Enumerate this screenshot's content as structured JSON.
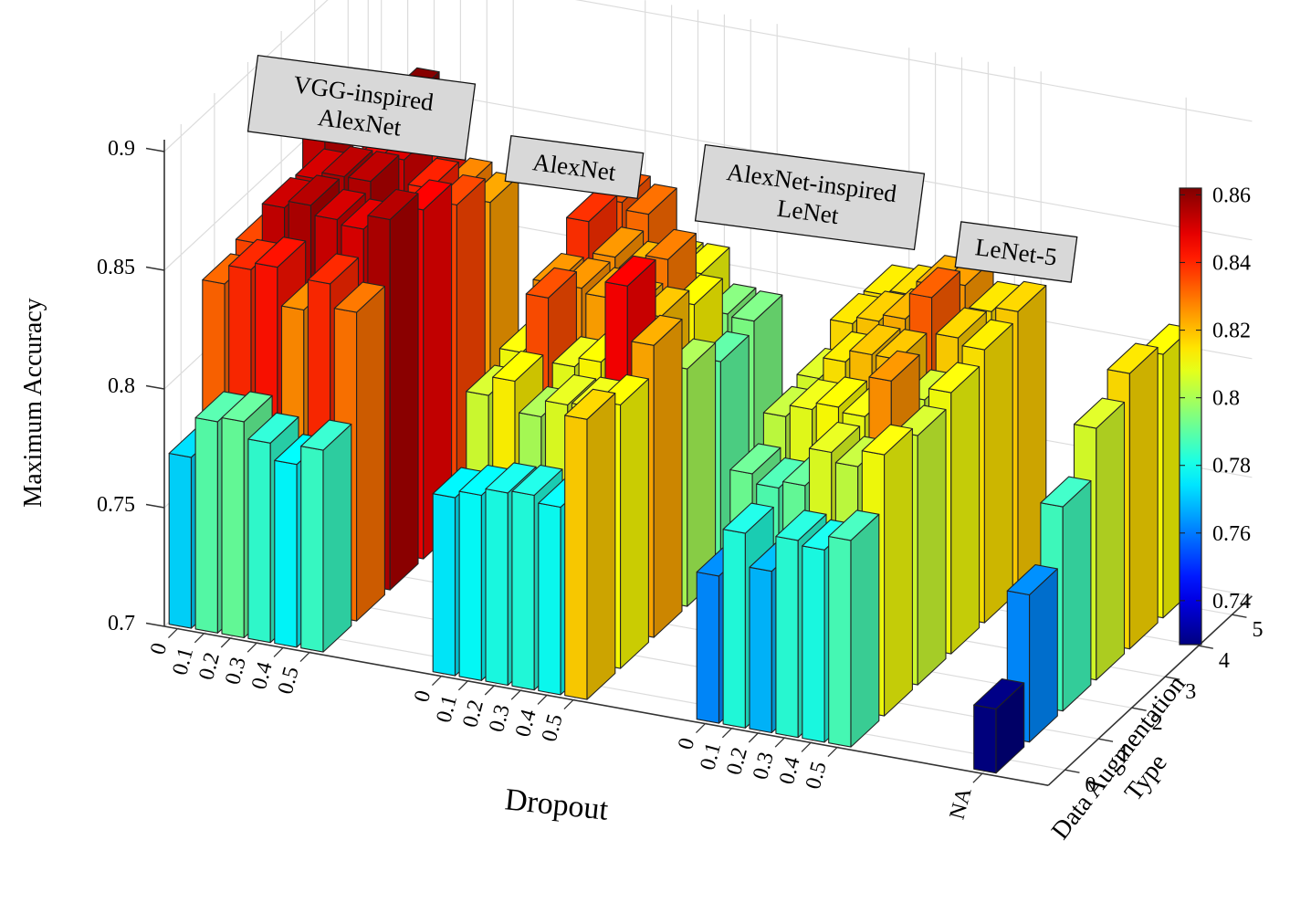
{
  "chart_data": {
    "type": "bar3d",
    "zlabel": "Maximum Accuracy",
    "xlabel": "Dropout",
    "ylabel": "Data Augmentation Type",
    "zlim": [
      0.7,
      0.9
    ],
    "z_ticks": [
      "0.7",
      "0.75",
      "0.8",
      "0.85",
      "0.9"
    ],
    "z_tick_values": [
      0.7,
      0.75,
      0.8,
      0.85,
      0.9
    ],
    "y_ticks": [
      "0",
      "1",
      "2",
      "3",
      "4",
      "5"
    ],
    "colorbar": {
      "colormap": "jet",
      "range": [
        0.727,
        0.862
      ],
      "ticks": [
        "0.74",
        "0.76",
        "0.78",
        "0.8",
        "0.82",
        "0.84",
        "0.86"
      ],
      "tick_values": [
        0.74,
        0.76,
        0.78,
        0.8,
        0.82,
        0.84,
        0.86
      ]
    },
    "groups": [
      {
        "label_lines": [
          "VGG-inspired",
          "AlexNet"
        ],
        "dropout_ticks": [
          "0",
          "0.1",
          "0.2",
          "0.3",
          "0.4",
          "0.5"
        ],
        "values": [
          [
            0.772,
            0.789,
            0.791,
            0.784,
            0.777,
            0.785
          ],
          [
            0.832,
            0.84,
            0.843,
            0.827,
            0.84,
            0.83
          ],
          [
            0.836,
            0.853,
            0.856,
            0.852,
            0.85,
            0.856
          ],
          [
            0.823,
            0.852,
            0.855,
            0.855,
            0.84,
            0.847
          ],
          [
            0.853,
            0.837,
            0.848,
            0.851,
            0.841,
            0.836
          ],
          [
            0.816,
            0.845,
            0.862,
            0.843,
            0.828,
            0.824
          ]
        ]
      },
      {
        "label_lines": [
          "AlexNet"
        ],
        "dropout_ticks": [
          "0",
          "0.1",
          "0.2",
          "0.3",
          "0.4",
          "0.5"
        ],
        "values": [
          [
            0.775,
            0.778,
            0.781,
            0.782,
            0.779,
            0.818
          ],
          [
            0.805,
            0.813,
            0.8,
            0.807,
            0.808,
            0.811
          ],
          [
            0.81,
            0.835,
            0.808,
            0.812,
            0.846,
            0.823
          ],
          [
            0.826,
            0.826,
            0.824,
            0.821,
            0.82,
            0.8
          ],
          [
            0.839,
            0.826,
            0.822,
            0.829,
            0.812,
            0.79
          ],
          [
            0.834,
            0.831,
            0.81,
            0.81,
            0.795,
            0.794
          ]
        ]
      },
      {
        "label_lines": [
          "AlexNet-inspired",
          "LeNet"
        ],
        "dropout_ticks": [
          "0",
          "0.1",
          "0.2",
          "0.3",
          "0.4",
          "0.5"
        ],
        "values": [
          [
            0.762,
            0.782,
            0.768,
            0.783,
            0.781,
            0.787
          ],
          [
            0.792,
            0.788,
            0.791,
            0.807,
            0.803,
            0.81
          ],
          [
            0.803,
            0.808,
            0.811,
            0.809,
            0.826,
            0.805
          ],
          [
            0.806,
            0.815,
            0.82,
            0.82,
            0.805,
            0.81
          ],
          [
            0.816,
            0.819,
            0.822,
            0.833,
            0.818,
            0.815
          ],
          [
            0.815,
            0.817,
            0.823,
            0.825,
            0.816,
            0.818
          ]
        ]
      },
      {
        "label_lines": [
          "LeNet-5"
        ],
        "dropout_ticks": [
          "NA"
        ],
        "values": [
          [
            0.727
          ],
          [
            0.762
          ],
          [
            0.786
          ],
          [
            0.806
          ],
          [
            0.816
          ],
          [
            0.811
          ]
        ]
      }
    ]
  }
}
